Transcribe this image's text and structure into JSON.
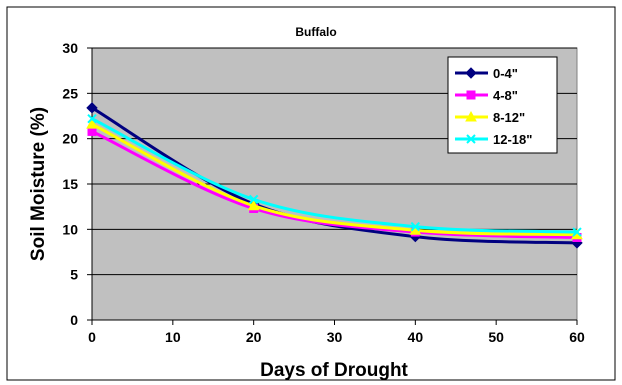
{
  "chart_data": {
    "type": "line",
    "title": "Buffalo",
    "xlabel": "Days of Drought",
    "ylabel": "Soil Moisture (%)",
    "xlim": [
      0,
      60
    ],
    "ylim": [
      0,
      30
    ],
    "x_ticks": [
      0,
      10,
      20,
      30,
      40,
      50,
      60
    ],
    "y_ticks": [
      0,
      5,
      10,
      15,
      20,
      25,
      30
    ],
    "grid": "horizontal",
    "legend_position": "top-right",
    "plot_background": "#c0c0c0",
    "x": [
      0,
      20,
      40,
      60
    ],
    "series": [
      {
        "name": "0-4\"",
        "values": [
          23.4,
          12.8,
          9.2,
          8.5
        ],
        "color": "#000080",
        "marker": "diamond"
      },
      {
        "name": "4-8\"",
        "values": [
          20.8,
          12.3,
          9.7,
          9.1
        ],
        "color": "#ff00ff",
        "marker": "square"
      },
      {
        "name": "8-12\"",
        "values": [
          21.6,
          12.6,
          9.9,
          9.4
        ],
        "color": "#ffff00",
        "marker": "triangle"
      },
      {
        "name": "12-18\"",
        "values": [
          22.2,
          13.3,
          10.3,
          9.7
        ],
        "color": "#00ffff",
        "marker": "x"
      }
    ]
  }
}
